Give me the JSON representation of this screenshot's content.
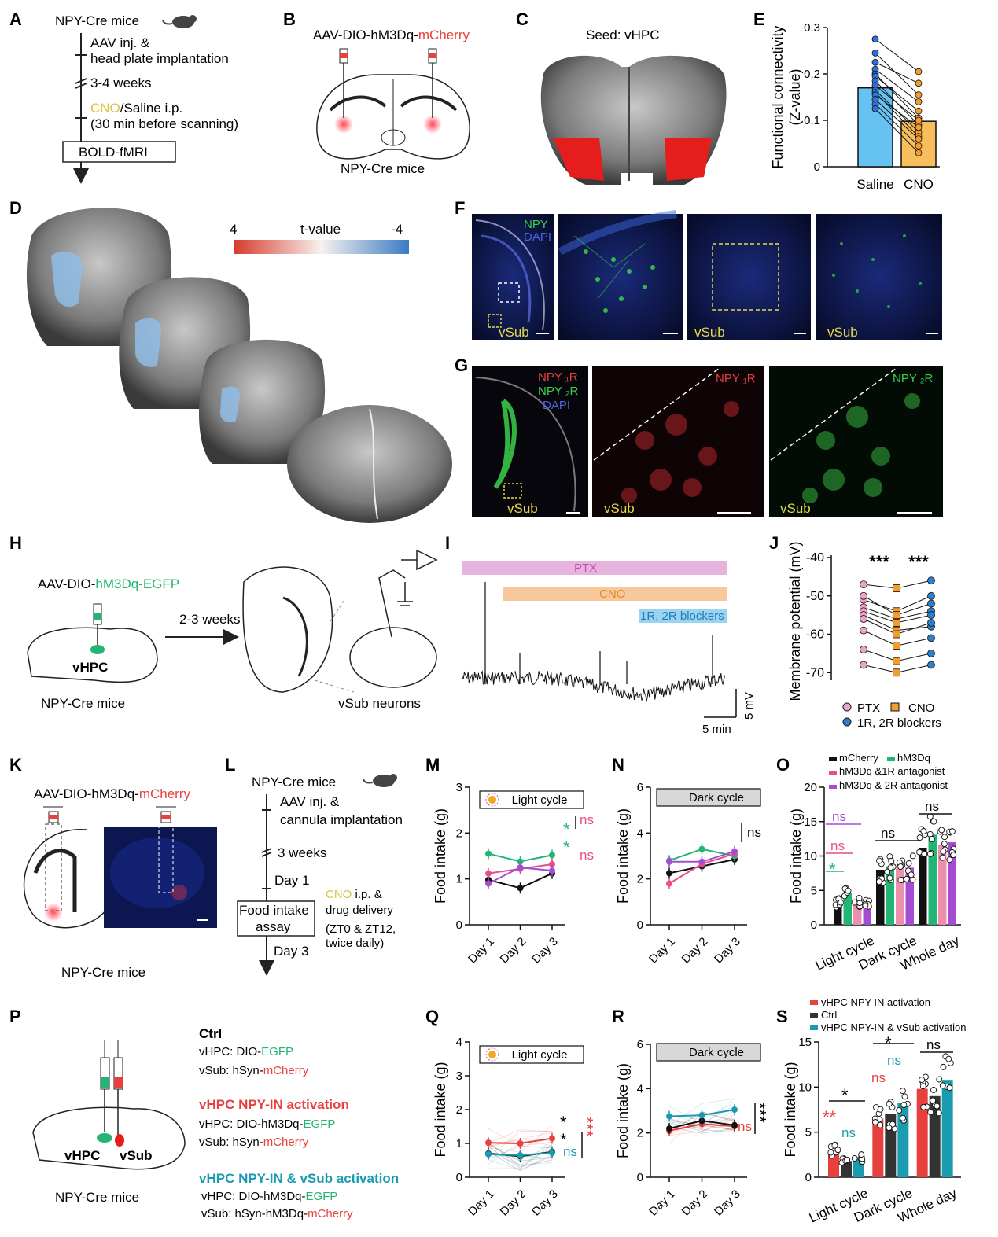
{
  "panel_letters": {
    "A": "A",
    "B": "B",
    "C": "C",
    "D": "D",
    "E": "E",
    "F": "F",
    "G": "G",
    "H": "H",
    "I": "I",
    "J": "J",
    "K": "K",
    "L": "L",
    "M": "M",
    "N": "N",
    "O": "O",
    "P": "P",
    "Q": "Q",
    "R": "R",
    "S": "S"
  },
  "panelA": {
    "mice": "NPY-Cre mice",
    "step1a": "AAV inj. &",
    "step1b": "head plate implantation",
    "step2": "3-4 weeks",
    "step3_cno": "CNO",
    "step3_rest": "/Saline i.p.",
    "step3b": "(30 min before scanning)",
    "box": "BOLD-fMRI"
  },
  "panelB": {
    "virus_prefix": "AAV-DIO-hM3Dq-",
    "virus_suffix": "mCherry",
    "mice": "NPY-Cre mice"
  },
  "panelC": {
    "title": "Seed: vHPC"
  },
  "panelD": {
    "scale_max": "4",
    "scale_label": "t-value",
    "scale_min": "-4"
  },
  "panelF": {
    "npy": "NPY",
    "dapi": "DAPI",
    "vsub": "vSub"
  },
  "panelG": {
    "r1": "NPY ₁R",
    "r2": "NPY ₂R",
    "dapi": "DAPI",
    "vsub": "vSub"
  },
  "panelH": {
    "virus_prefix": "AAV-DIO-",
    "virus_suffix": "hM3Dq-EGFP",
    "weeks": "2-3 weeks",
    "region": "vHPC",
    "mice": "NPY-Cre mice",
    "neurons": "vSub neurons"
  },
  "panelI": {
    "ptx": "PTX",
    "cno": "CNO",
    "blockers": "1R, 2R blockers",
    "scale_v": "5 mV",
    "scale_t": "5 min"
  },
  "panelK": {
    "virus_prefix": "AAV-DIO-hM3Dq-",
    "virus_suffix": "mCherry",
    "mice": "NPY-Cre mice"
  },
  "panelL": {
    "mice": "NPY-Cre mice",
    "step1a": "AAV inj. &",
    "step1b": "cannula implantation",
    "weeks": "3 weeks",
    "day1": "Day 1",
    "box1": "Food intake",
    "box2": "assay",
    "day3": "Day 3",
    "cno": "CNO",
    "cno_rest": " i.p. &",
    "drug": "drug delivery",
    "zt": "(ZT0 & ZT12,",
    "twice": "twice daily)"
  },
  "panelP": {
    "ctrl_title": "Ctrl",
    "ctrl_l1_prefix": "vHPC: DIO-",
    "ctrl_l1_suffix": "EGFP",
    "ctrl_l2_prefix": "vSub: hSyn-",
    "ctrl_l2_suffix": "mCherry",
    "act_title": "vHPC NPY-IN activation",
    "act_l1_prefix": "vHPC: DIO-hM3Dq-",
    "act_l1_suffix": "EGFP",
    "act_l2_prefix": "vSub: hSyn-",
    "act_l2_suffix": "mCherry",
    "both_title": "vHPC NPY-IN & vSub activation",
    "both_l1_prefix": "vHPC: DIO-hM3Dq-",
    "both_l1_suffix": "EGFP",
    "both_l2_prefix": "vSub: hSyn-hM3Dq-",
    "both_l2_suffix": "mCherry",
    "vhpc": "vHPC",
    "vsub": "vSub",
    "mice": "NPY-Cre mice"
  },
  "colors": {
    "red": "#e8403d",
    "green": "#22b573",
    "pink": "#e94c8a",
    "purple": "#a54dd2",
    "cyan": "#1b9bb0",
    "blue": "#4a8fd8",
    "orange": "#f3a33b",
    "yellow": "#d8c444",
    "ptx": "#e6b3dc",
    "cno_bar": "#f6c89a",
    "blk": "#9bd3f0"
  },
  "chart_data": [
    {
      "id": "E",
      "type": "bar",
      "title": "",
      "ylabel": "Functional connectivity",
      "ylabel2": "(Z-value)",
      "categories": [
        "Saline",
        "CNO"
      ],
      "values": [
        0.17,
        0.098
      ],
      "ylim": [
        0,
        0.3
      ],
      "yticks": [
        "0",
        "0.1",
        "0.2",
        "0.3"
      ],
      "paired": [
        [
          0.275,
          0.205
        ],
        [
          0.245,
          0.155
        ],
        [
          0.225,
          0.18
        ],
        [
          0.21,
          0.14
        ],
        [
          0.2,
          0.105
        ],
        [
          0.195,
          0.12
        ],
        [
          0.185,
          0.09
        ],
        [
          0.175,
          0.1
        ],
        [
          0.165,
          0.075
        ],
        [
          0.16,
          0.065
        ],
        [
          0.155,
          0.085
        ],
        [
          0.145,
          0.06
        ],
        [
          0.135,
          0.045
        ],
        [
          0.125,
          0.03
        ]
      ]
    },
    {
      "id": "J",
      "type": "scatter",
      "ylabel": "Membrane potential (mV)",
      "categories": [
        "PTX",
        "CNO",
        "1R, 2R blockers"
      ],
      "ylim": [
        -72,
        -40
      ],
      "yticks": [
        "-40",
        "-50",
        "-60",
        "-70"
      ],
      "sig": [
        "***",
        "***"
      ],
      "legend": [
        "PTX",
        "CNO",
        "1R, 2R blockers"
      ],
      "paired": [
        [
          -47,
          -48,
          -46
        ],
        [
          -51,
          -54,
          -50
        ],
        [
          -53,
          -56,
          -54
        ],
        [
          -54,
          -57,
          -55
        ],
        [
          -55,
          -59,
          -58
        ],
        [
          -56,
          -60,
          -57
        ],
        [
          -59,
          -63,
          -61
        ],
        [
          -64,
          -67,
          -65
        ],
        [
          -68,
          -70,
          -68
        ],
        [
          -50,
          -55,
          -52
        ]
      ]
    },
    {
      "id": "M",
      "type": "line",
      "title": "Light cycle",
      "ylabel": "Food intake (g)",
      "x": [
        "Day 1",
        "Day 2",
        "Day 3"
      ],
      "ylim": [
        0,
        3
      ],
      "yticks": [
        "0",
        "1",
        "2",
        "3"
      ],
      "series": [
        {
          "name": "mCherry",
          "values": [
            0.98,
            0.8,
            1.12
          ]
        },
        {
          "name": "hM3Dq",
          "values": [
            1.55,
            1.38,
            1.52
          ]
        },
        {
          "name": "hM3Dq & 1R antagonist",
          "values": [
            1.12,
            1.22,
            1.32
          ]
        },
        {
          "name": "hM3Dq & 2R antagonist",
          "values": [
            0.9,
            1.25,
            1.18
          ]
        }
      ],
      "sig": [
        "ns",
        "*",
        "*",
        "ns"
      ]
    },
    {
      "id": "N",
      "type": "line",
      "title": "Dark cycle",
      "ylabel": "Food intake (g)",
      "x": [
        "Day 1",
        "Day 2",
        "Day 3"
      ],
      "ylim": [
        0,
        6
      ],
      "yticks": [
        "0",
        "2",
        "4",
        "6"
      ],
      "series": [
        {
          "name": "mCherry",
          "values": [
            2.25,
            2.55,
            2.85
          ]
        },
        {
          "name": "hM3Dq",
          "values": [
            2.8,
            3.3,
            3.0
          ]
        },
        {
          "name": "hM3Dq & 1R antagonist",
          "values": [
            1.8,
            2.65,
            3.1
          ]
        },
        {
          "name": "hM3Dq & 2R antagonist",
          "values": [
            2.75,
            2.75,
            3.2
          ]
        }
      ],
      "sig": [
        "ns"
      ]
    },
    {
      "id": "O",
      "type": "bar",
      "ylabel": "Food intake (g)",
      "categories": [
        "Light cycle",
        "Dark cycle",
        "Whole day"
      ],
      "ylim": [
        0,
        20
      ],
      "yticks": [
        "0",
        "5",
        "10",
        "15",
        "20"
      ],
      "legend": [
        "mCherry",
        "hM3Dq",
        "hM3Dq &1R antagonist",
        "hM3Dq & 2R antagonist"
      ],
      "series": [
        {
          "name": "mCherry",
          "values": [
            3.2,
            8.0,
            11.2
          ]
        },
        {
          "name": "hM3Dq",
          "values": [
            4.6,
            8.5,
            13.1
          ]
        },
        {
          "name": "hM3Dq &1R antagonist",
          "values": [
            3.4,
            8.2,
            11.6
          ]
        },
        {
          "name": "hM3Dq & 2R antagonist",
          "values": [
            3.0,
            8.3,
            12.0
          ]
        }
      ],
      "sig": [
        "ns",
        "ns",
        "*",
        "ns",
        "ns"
      ]
    },
    {
      "id": "Q",
      "type": "line",
      "title": "Light cycle",
      "ylabel": "Food intake (g)",
      "x": [
        "Day 1",
        "Day 2",
        "Day 3"
      ],
      "ylim": [
        0,
        4
      ],
      "yticks": [
        "0",
        "1",
        "2",
        "3",
        "4"
      ],
      "series": [
        {
          "name": "vHPC NPY-IN activation",
          "values": [
            1.02,
            1.0,
            1.15
          ]
        },
        {
          "name": "Ctrl",
          "values": [
            0.7,
            0.62,
            0.75
          ]
        },
        {
          "name": "vHPC NPY-IN & vSub activation",
          "values": [
            0.68,
            0.65,
            0.72
          ]
        }
      ],
      "sig": [
        "*",
        "*",
        "ns",
        "***"
      ]
    },
    {
      "id": "R",
      "type": "line",
      "title": "Dark cycle",
      "ylabel": "Food intake (g)",
      "x": [
        "Day 1",
        "Day 2",
        "Day 3"
      ],
      "ylim": [
        0,
        6
      ],
      "yticks": [
        "0",
        "2",
        "4",
        "6"
      ],
      "series": [
        {
          "name": "vHPC NPY-IN activation",
          "values": [
            2.1,
            2.4,
            2.3
          ]
        },
        {
          "name": "Ctrl",
          "values": [
            2.2,
            2.55,
            2.35
          ]
        },
        {
          "name": "vHPC NPY-IN & vSub activation",
          "values": [
            2.75,
            2.8,
            3.05
          ]
        }
      ],
      "sig": [
        "ns",
        "***"
      ]
    },
    {
      "id": "S",
      "type": "bar",
      "ylabel": "Food intake (g)",
      "categories": [
        "Light cycle",
        "Dark cycle",
        "Whole day"
      ],
      "ylim": [
        0,
        15
      ],
      "yticks": [
        "0",
        "5",
        "10",
        "15"
      ],
      "legend": [
        "vHPC NPY-IN activation",
        "Ctrl",
        "vHPC NPY-IN & vSub activation"
      ],
      "series": [
        {
          "name": "vHPC NPY-IN activation",
          "values": [
            3.0,
            6.5,
            9.8
          ]
        },
        {
          "name": "Ctrl",
          "values": [
            1.8,
            7.0,
            9.0
          ]
        },
        {
          "name": "vHPC NPY-IN & vSub activation",
          "values": [
            2.2,
            8.2,
            10.8
          ]
        }
      ],
      "sig": [
        "*",
        "**",
        "ns",
        "*",
        "ns",
        "ns",
        "ns"
      ]
    }
  ]
}
